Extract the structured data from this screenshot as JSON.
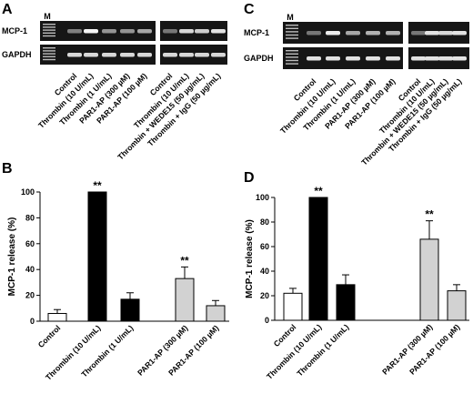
{
  "panels": {
    "A": "A",
    "B": "B",
    "C": "C",
    "D": "D"
  },
  "gels": {
    "A": {
      "marker": "M",
      "rows": [
        "MCP-1",
        "GAPDH"
      ],
      "left_lanes": [
        "Control",
        "Thrombin (10 U/mL)",
        "Thrombin (1 U/mL)",
        "PAR1-AP (300 µM)",
        "PAR1-AP (100 µM)"
      ],
      "right_lanes": [
        "Control",
        "Thrombin (10 U/mL)",
        "Thrombin + WEDE15 (50 µg/mL)",
        "Thrombin + IgG (50 µg/mL)"
      ]
    },
    "C": {
      "marker": "M",
      "rows": [
        "MCP-1",
        "GAPDH"
      ],
      "left_lanes": [
        "Control",
        "Thrombin (10 U/mL)",
        "Thrombin (1 U/mL)",
        "PAR1-AP (300 µM)",
        "PAR1-AP (100 µM)"
      ],
      "right_lanes": [
        "Control",
        "Thrombin (10 U/mL)",
        "Thrombin + WEDE15 (50 µg/mL)",
        "Thrombin + IgG (50 µg/mL)"
      ]
    }
  },
  "chart_data": [
    {
      "panel": "B",
      "type": "bar",
      "ylabel": "MCP-1 release (%)",
      "ylim": [
        0,
        100
      ],
      "yticks": [
        0,
        20,
        40,
        60,
        80,
        100
      ],
      "categories": [
        "Control",
        "Thrombin (10 U/mL)",
        "Thrombin (1 U/mL)",
        "PAR1-AP (300 µM)",
        "PAR1-AP (100 µM)"
      ],
      "values": [
        6,
        100,
        17,
        33,
        12
      ],
      "errors": [
        3,
        0,
        5,
        9,
        4
      ],
      "fills": [
        "#ffffff",
        "#000000",
        "#000000",
        "#d2d2d2",
        "#d2d2d2"
      ],
      "annotations": [
        "",
        "**",
        "",
        "**",
        ""
      ]
    },
    {
      "panel": "D",
      "type": "bar",
      "ylabel": "MCP-1 release (%)",
      "ylim": [
        0,
        100
      ],
      "yticks": [
        0,
        20,
        40,
        60,
        80,
        100
      ],
      "categories": [
        "Control",
        "Thrombin (10 U/mL)",
        "Thrombin (1 U/mL)",
        "PAR1-AP (300 µM)",
        "PAR1-AP (100 µM)"
      ],
      "values": [
        22,
        100,
        29,
        66,
        24
      ],
      "errors": [
        4,
        0,
        8,
        15,
        5
      ],
      "fills": [
        "#ffffff",
        "#000000",
        "#000000",
        "#d2d2d2",
        "#d2d2d2"
      ],
      "annotations": [
        "",
        "**",
        "",
        "**",
        ""
      ]
    }
  ]
}
